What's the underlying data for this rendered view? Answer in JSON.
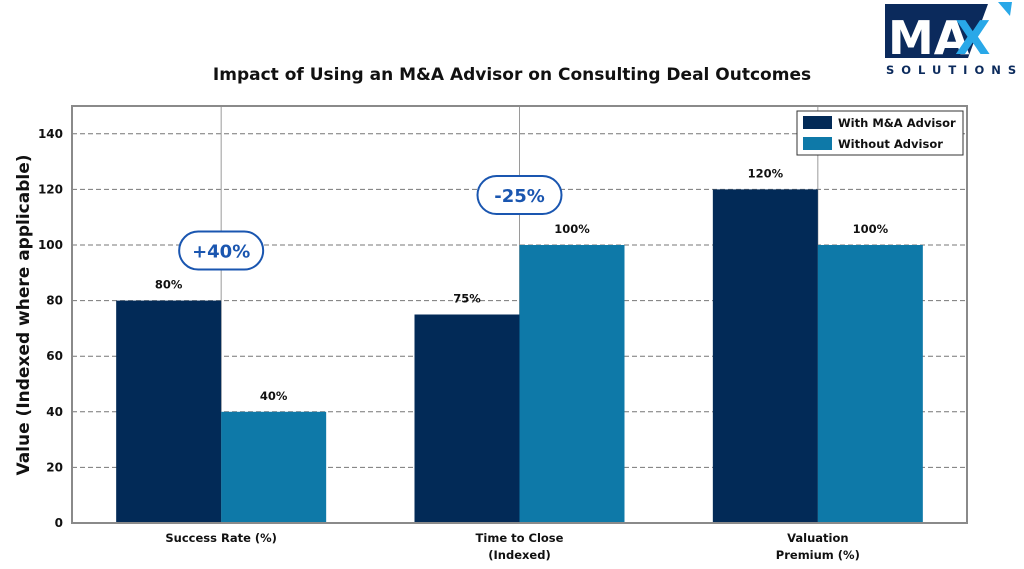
{
  "logo": {
    "main_text": "MA",
    "accent_letter": "X",
    "subtitle": "SOLUTIONS",
    "brand_dark": "#0b2a5c",
    "brand_accent": "#29a8e8"
  },
  "chart_data": {
    "type": "bar",
    "title": "Impact of Using an M&A Advisor on Consulting Deal Outcomes",
    "xlabel": "",
    "ylabel": "Value (Indexed where applicable)",
    "ylim": [
      0,
      150
    ],
    "yticks": [
      0,
      20,
      40,
      60,
      80,
      100,
      120,
      140
    ],
    "grid": true,
    "legend_position": "top-right",
    "categories": [
      [
        "Success Rate (%)"
      ],
      [
        "Time to Close",
        "(Indexed)"
      ],
      [
        "Valuation",
        "Premium (%)"
      ]
    ],
    "series": [
      {
        "name": "With M&A Advisor",
        "color": "#022a57",
        "values": [
          80,
          75,
          120
        ],
        "labels": [
          "80%",
          "75%",
          "120%"
        ]
      },
      {
        "name": "Without Advisor",
        "color": "#0e79a8",
        "values": [
          40,
          100,
          100
        ],
        "labels": [
          "40%",
          "100%",
          "100%"
        ]
      }
    ],
    "annotations": [
      {
        "text": "+40%",
        "category_index": 0,
        "y_value": 98,
        "color": "#1a56b0"
      },
      {
        "text": "-25%",
        "category_index": 1,
        "y_value": 118,
        "color": "#1a56b0"
      }
    ]
  }
}
